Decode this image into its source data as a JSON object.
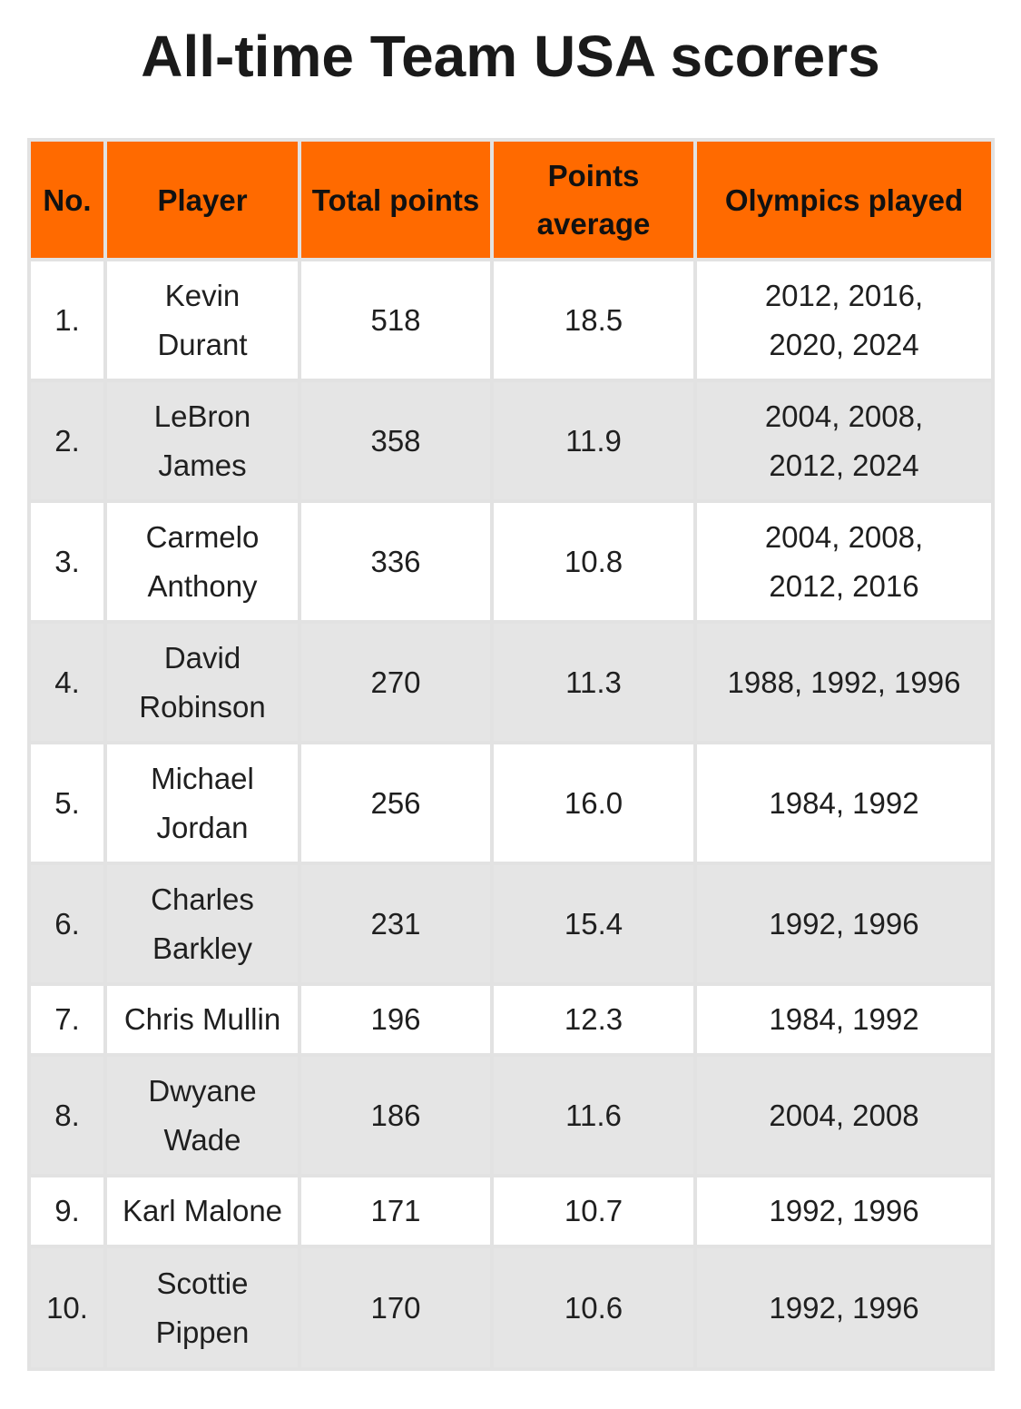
{
  "title": "All-time Team USA scorers",
  "table": {
    "headers": {
      "no": "No.",
      "player": "Player",
      "total_points": "Total points",
      "points_average": "Points average",
      "olympics_played": "Olympics played"
    },
    "rows": [
      {
        "no": "1.",
        "player": "Kevin Durant",
        "total_points": "518",
        "points_average": "18.5",
        "olympics_played": "2012, 2016, 2020, 2024"
      },
      {
        "no": "2.",
        "player": "LeBron James",
        "total_points": "358",
        "points_average": "11.9",
        "olympics_played": "2004, 2008, 2012, 2024"
      },
      {
        "no": "3.",
        "player": "Carmelo Anthony",
        "total_points": "336",
        "points_average": "10.8",
        "olympics_played": "2004, 2008, 2012, 2016"
      },
      {
        "no": "4.",
        "player": "David Robinson",
        "total_points": "270",
        "points_average": "11.3",
        "olympics_played": "1988, 1992, 1996"
      },
      {
        "no": "5.",
        "player": "Michael Jordan",
        "total_points": "256",
        "points_average": "16.0",
        "olympics_played": "1984, 1992"
      },
      {
        "no": "6.",
        "player": "Charles Barkley",
        "total_points": "231",
        "points_average": "15.4",
        "olympics_played": "1992, 1996"
      },
      {
        "no": "7.",
        "player": "Chris Mullin",
        "total_points": "196",
        "points_average": "12.3",
        "olympics_played": "1984, 1992"
      },
      {
        "no": "8.",
        "player": "Dwyane Wade",
        "total_points": "186",
        "points_average": "11.6",
        "olympics_played": "2004, 2008"
      },
      {
        "no": "9.",
        "player": "Karl Malone",
        "total_points": "171",
        "points_average": "10.7",
        "olympics_played": "1992, 1996"
      },
      {
        "no": "10.",
        "player": "Scottie Pippen",
        "total_points": "170",
        "points_average": "10.6",
        "olympics_played": "1992, 1996"
      }
    ]
  },
  "colors": {
    "header_background": "#ff6a00",
    "stripe_background": "#e5e5e5",
    "row_background": "#ffffff"
  }
}
